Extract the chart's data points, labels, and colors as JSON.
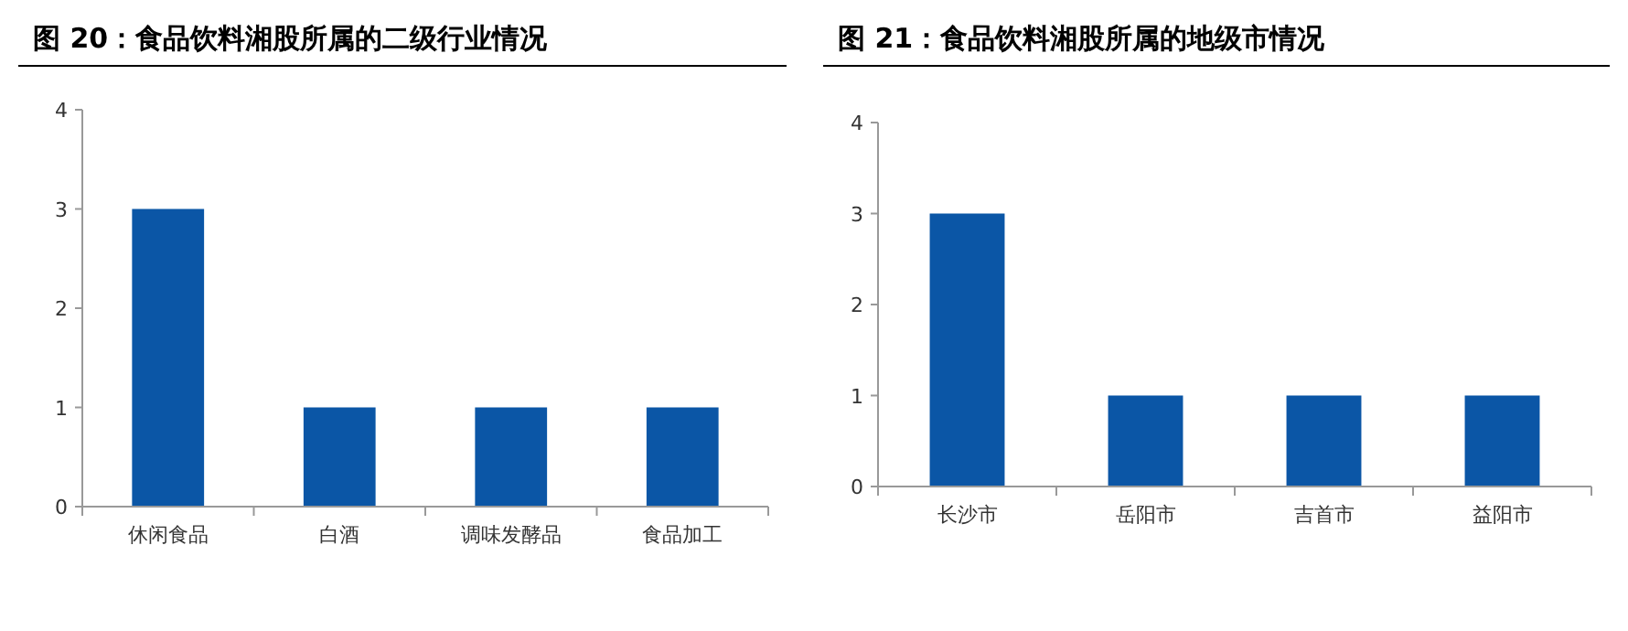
{
  "chart_data": [
    {
      "type": "bar",
      "title": "图 20：食品饮料湘股所属的二级行业情况",
      "categories": [
        "休闲食品",
        "白酒",
        "调味发酵品",
        "食品加工"
      ],
      "values": [
        3,
        1,
        1,
        1
      ],
      "color": "#0b56a6",
      "ylim": [
        0,
        4
      ],
      "yticks": [
        0,
        1,
        2,
        3,
        4
      ],
      "grid": false
    },
    {
      "type": "bar",
      "title": "图 21：食品饮料湘股所属的地级市情况",
      "categories": [
        "长沙市",
        "岳阳市",
        "吉首市",
        "益阳市"
      ],
      "values": [
        3,
        1,
        1,
        1
      ],
      "color": "#0b56a6",
      "ylim": [
        0,
        4
      ],
      "yticks": [
        0,
        1,
        2,
        3,
        4
      ],
      "grid": false
    }
  ]
}
